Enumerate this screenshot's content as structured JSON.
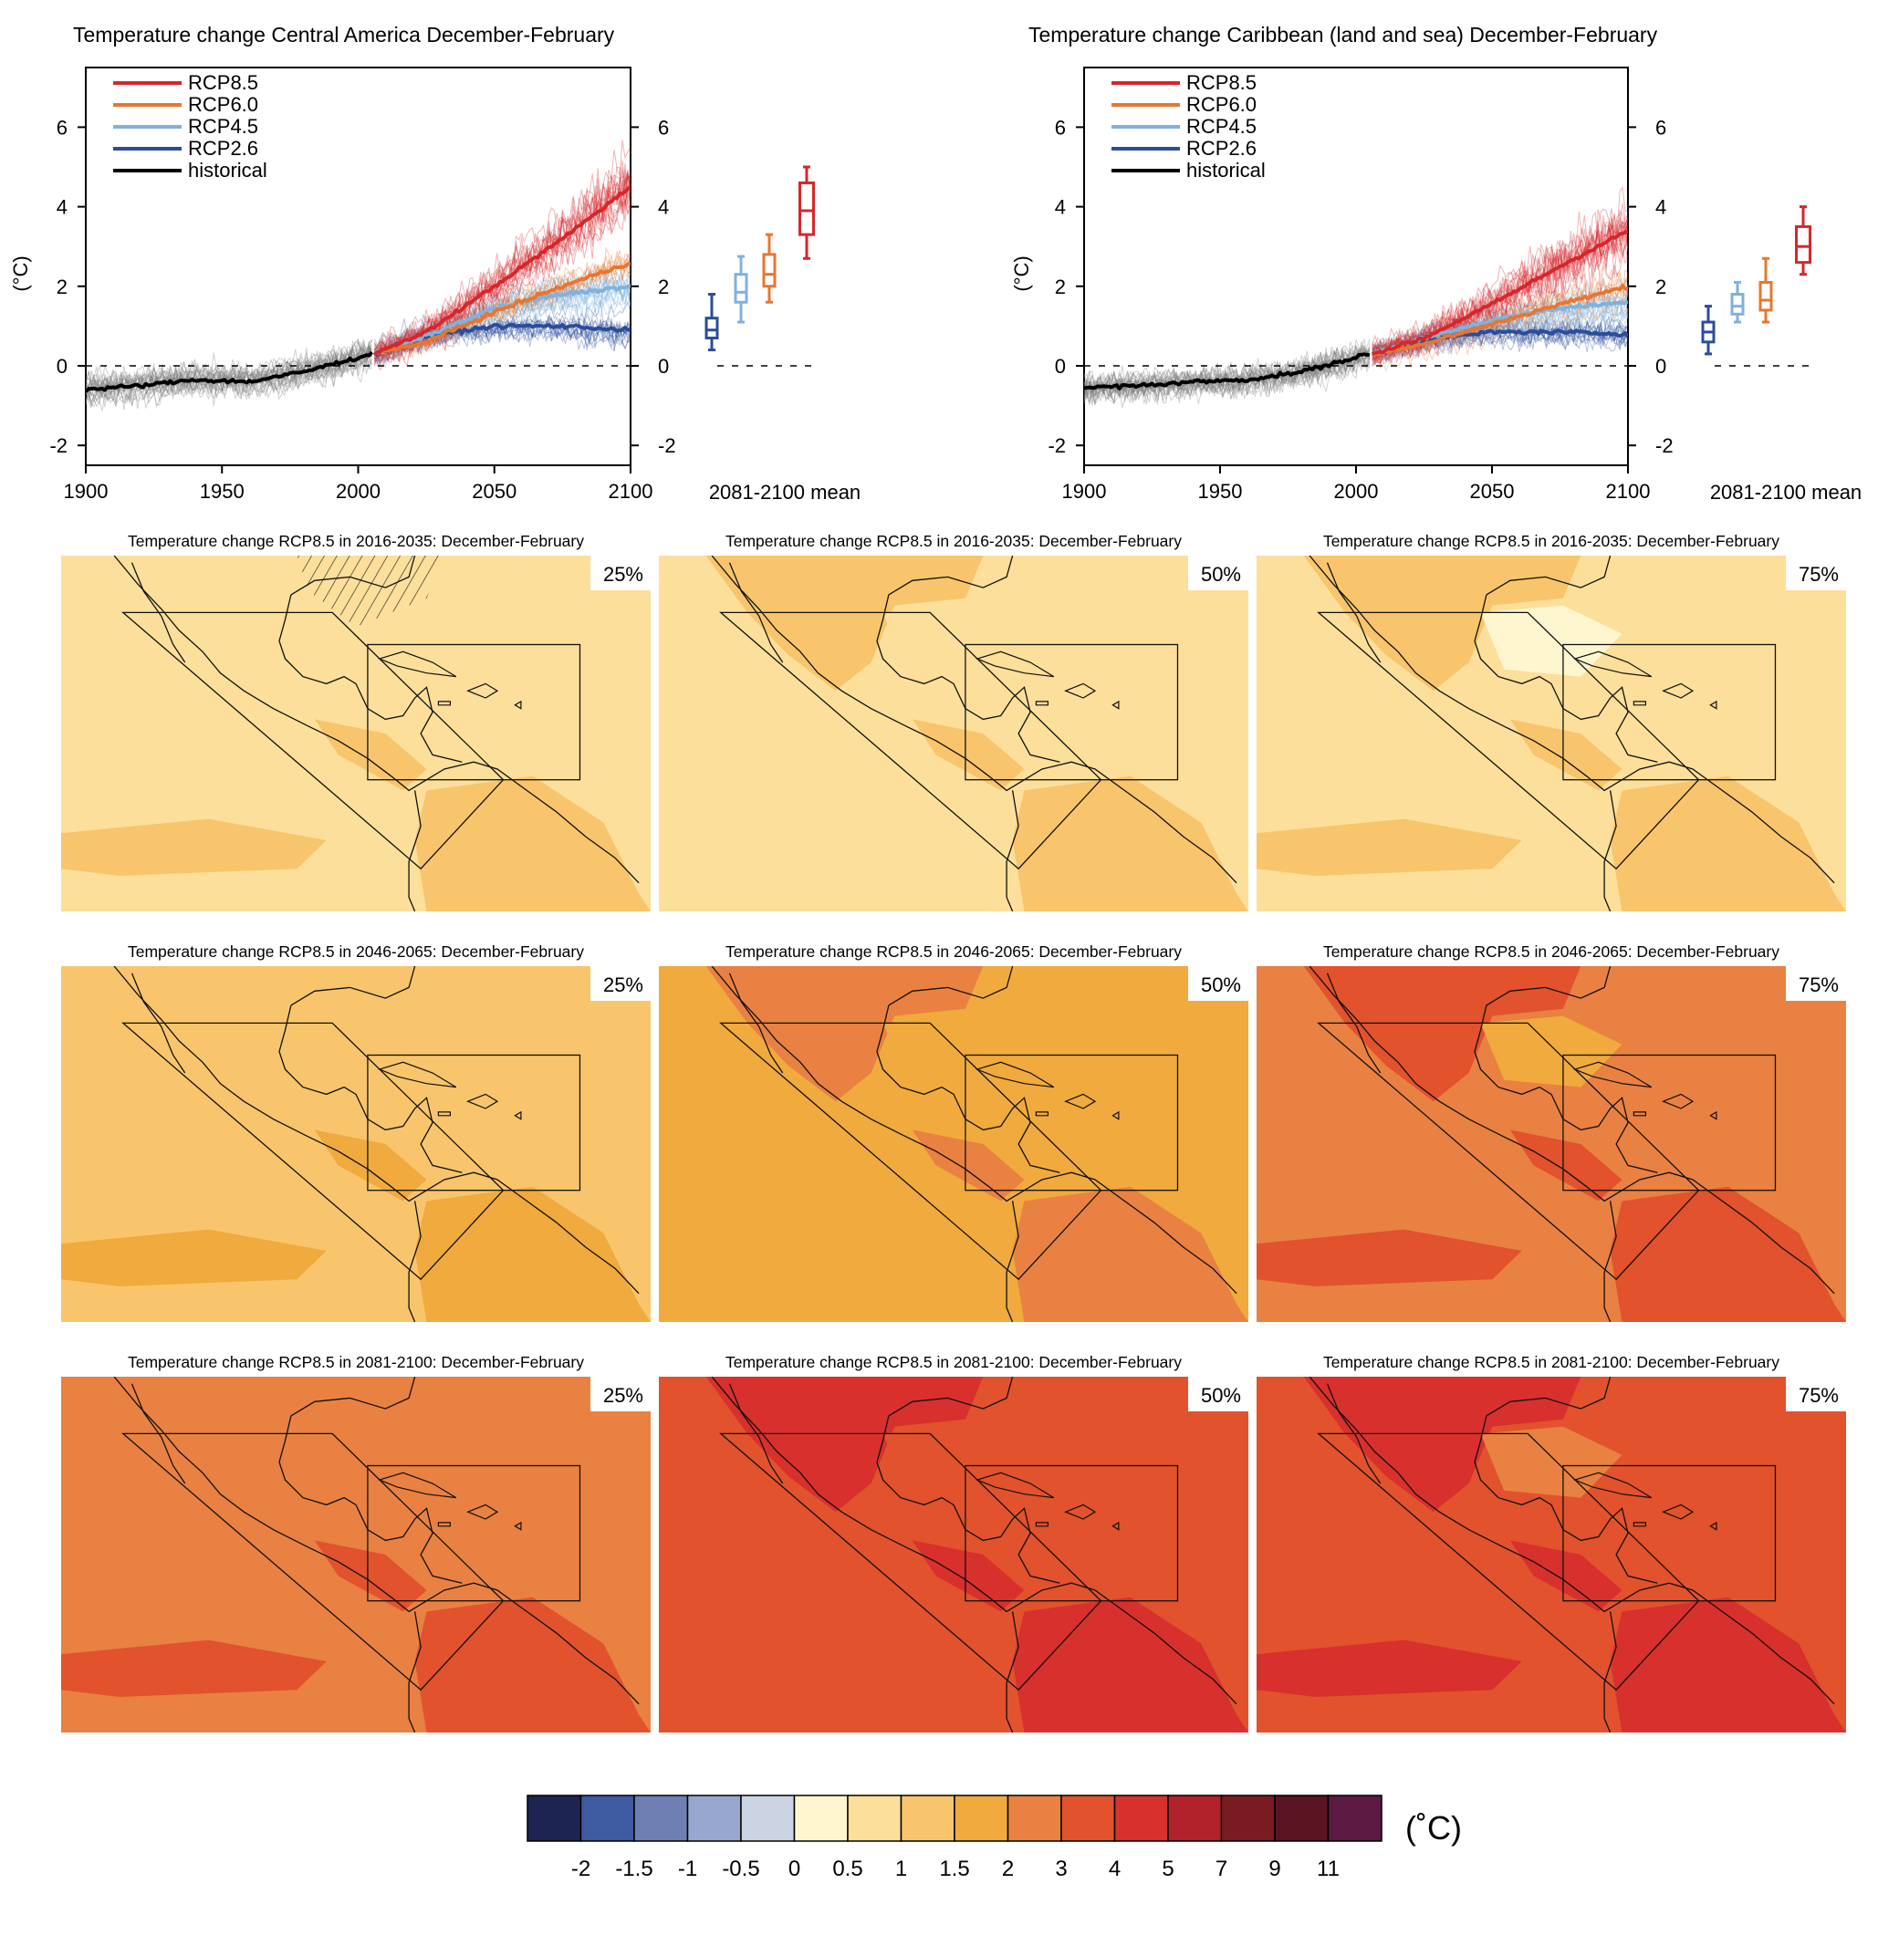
{
  "colors": {
    "rcp85": "#d7262b",
    "rcp60": "#e9762f",
    "rcp45": "#7fb2de",
    "rcp26": "#2b4d9a",
    "historical": "#000000",
    "hist_spread": "#7a7a7a"
  },
  "timeseries": [
    {
      "title": "Temperature change Central America December-February",
      "ylabel": "(°C)",
      "boxplot_label": "2081-2100 mean"
    },
    {
      "title": "Temperature change Caribbean (land and sea) December-February",
      "ylabel": "(°C)",
      "boxplot_label": "2081-2100 mean"
    }
  ],
  "legend": [
    "RCP8.5",
    "RCP6.0",
    "RCP4.5",
    "RCP2.6",
    "historical"
  ],
  "maps": {
    "row_titles": [
      "Temperature change RCP8.5 in 2016-2035: December-February",
      "Temperature change RCP8.5 in 2046-2065: December-February",
      "Temperature change RCP8.5 in 2081-2100: December-February"
    ],
    "percentiles": [
      "25%",
      "50%",
      "75%"
    ],
    "base_levels": [
      [
        6,
        6,
        6
      ],
      [
        7,
        8,
        9
      ],
      [
        9,
        10,
        10
      ]
    ],
    "hatched": "2016-2035, 25%"
  },
  "colorbar": {
    "unit": "(˚C)",
    "ticks": [
      "-2",
      "-1.5",
      "-1",
      "-0.5",
      "0",
      "0.5",
      "1",
      "1.5",
      "2",
      "3",
      "4",
      "5",
      "7",
      "9",
      "11"
    ],
    "colors": [
      "#1e2452",
      "#3e5aa0",
      "#6e7fb4",
      "#97a7cd",
      "#ccd4e4",
      "#fef6cf",
      "#fcdf9a",
      "#f8c56c",
      "#f0aa3d",
      "#e98142",
      "#e1522d",
      "#d8302d",
      "#b2222b",
      "#7a1b21",
      "#5a1422",
      "#5c1a42"
    ]
  },
  "chart_data": [
    {
      "type": "line",
      "title": "Temperature change Central America December-February",
      "ylabel": "(°C)",
      "xlim": [
        1900,
        2100
      ],
      "ylim": [
        -2.5,
        7.5
      ],
      "xticks": [
        "1900",
        "1950",
        "2000",
        "2050",
        "2100"
      ],
      "yticks": [
        "-2",
        "0",
        "2",
        "4",
        "6"
      ],
      "series": [
        {
          "name": "historical",
          "x": [
            1900,
            1920,
            1940,
            1960,
            1980,
            2005
          ],
          "y": [
            -0.6,
            -0.5,
            -0.35,
            -0.4,
            -0.15,
            0.3
          ]
        },
        {
          "name": "RCP8.5",
          "x": [
            2006,
            2025,
            2050,
            2075,
            2100
          ],
          "y": [
            0.3,
            0.85,
            2.0,
            3.2,
            4.5
          ]
        },
        {
          "name": "RCP6.0",
          "x": [
            2006,
            2025,
            2050,
            2075,
            2100
          ],
          "y": [
            0.3,
            0.6,
            1.35,
            2.0,
            2.6
          ]
        },
        {
          "name": "RCP4.5",
          "x": [
            2006,
            2025,
            2050,
            2075,
            2100
          ],
          "y": [
            0.3,
            0.75,
            1.45,
            1.8,
            2.0
          ]
        },
        {
          "name": "RCP2.6",
          "x": [
            2006,
            2025,
            2050,
            2075,
            2100
          ],
          "y": [
            0.3,
            0.75,
            1.0,
            1.0,
            0.9
          ]
        }
      ],
      "boxplot_2081_2100": [
        {
          "name": "RCP2.6",
          "min": 0.4,
          "q1": 0.7,
          "median": 0.9,
          "q3": 1.2,
          "max": 1.8
        },
        {
          "name": "RCP4.5",
          "min": 1.1,
          "q1": 1.6,
          "median": 1.85,
          "q3": 2.3,
          "max": 2.75
        },
        {
          "name": "RCP6.0",
          "min": 1.6,
          "q1": 2.0,
          "median": 2.3,
          "q3": 2.8,
          "max": 3.3
        },
        {
          "name": "RCP8.5",
          "min": 2.7,
          "q1": 3.3,
          "median": 3.9,
          "q3": 4.6,
          "max": 5.0
        }
      ],
      "zero_line": "dashed"
    },
    {
      "type": "line",
      "title": "Temperature change Caribbean (land and sea) December-February",
      "ylabel": "(°C)",
      "xlim": [
        1900,
        2100
      ],
      "ylim": [
        -2.5,
        7.5
      ],
      "xticks": [
        "1900",
        "1950",
        "2000",
        "2050",
        "2100"
      ],
      "yticks": [
        "-2",
        "0",
        "2",
        "4",
        "6"
      ],
      "series": [
        {
          "name": "historical",
          "x": [
            1900,
            1920,
            1940,
            1960,
            1980,
            2005
          ],
          "y": [
            -0.55,
            -0.5,
            -0.4,
            -0.35,
            -0.15,
            0.3
          ]
        },
        {
          "name": "RCP8.5",
          "x": [
            2006,
            2025,
            2050,
            2075,
            2100
          ],
          "y": [
            0.3,
            0.7,
            1.55,
            2.5,
            3.4
          ]
        },
        {
          "name": "RCP6.0",
          "x": [
            2006,
            2025,
            2050,
            2075,
            2100
          ],
          "y": [
            0.3,
            0.55,
            1.05,
            1.55,
            2.0
          ]
        },
        {
          "name": "RCP4.5",
          "x": [
            2006,
            2025,
            2050,
            2075,
            2100
          ],
          "y": [
            0.3,
            0.7,
            1.15,
            1.45,
            1.6
          ]
        },
        {
          "name": "RCP2.6",
          "x": [
            2006,
            2025,
            2050,
            2075,
            2100
          ],
          "y": [
            0.3,
            0.65,
            0.85,
            0.85,
            0.8
          ]
        }
      ],
      "boxplot_2081_2100": [
        {
          "name": "RCP2.6",
          "min": 0.3,
          "q1": 0.6,
          "median": 0.85,
          "q3": 1.1,
          "max": 1.5
        },
        {
          "name": "RCP4.5",
          "min": 1.1,
          "q1": 1.3,
          "median": 1.5,
          "q3": 1.8,
          "max": 2.1
        },
        {
          "name": "RCP6.0",
          "min": 1.1,
          "q1": 1.4,
          "median": 1.65,
          "q3": 2.1,
          "max": 2.7
        },
        {
          "name": "RCP8.5",
          "min": 2.3,
          "q1": 2.6,
          "median": 3.0,
          "q3": 3.5,
          "max": 4.0
        }
      ],
      "zero_line": "dashed"
    }
  ]
}
